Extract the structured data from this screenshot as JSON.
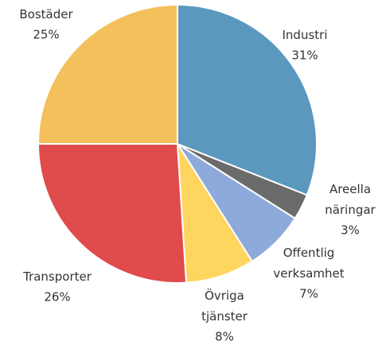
{
  "chart_data": {
    "type": "pie",
    "categories": [
      "Industri",
      "Areella näringar",
      "Offentlig verksamhet",
      "Övriga tjänster",
      "Transporter",
      "Bostäder"
    ],
    "values": [
      31,
      3,
      7,
      8,
      26,
      25
    ],
    "value_labels": [
      "31%",
      "3%",
      "7%",
      "8%",
      "26%",
      "25%"
    ],
    "colors": [
      "#5b98be",
      "#6b6b6b",
      "#8eaadb",
      "#fed55f",
      "#e04b4b",
      "#f4c05b"
    ]
  }
}
